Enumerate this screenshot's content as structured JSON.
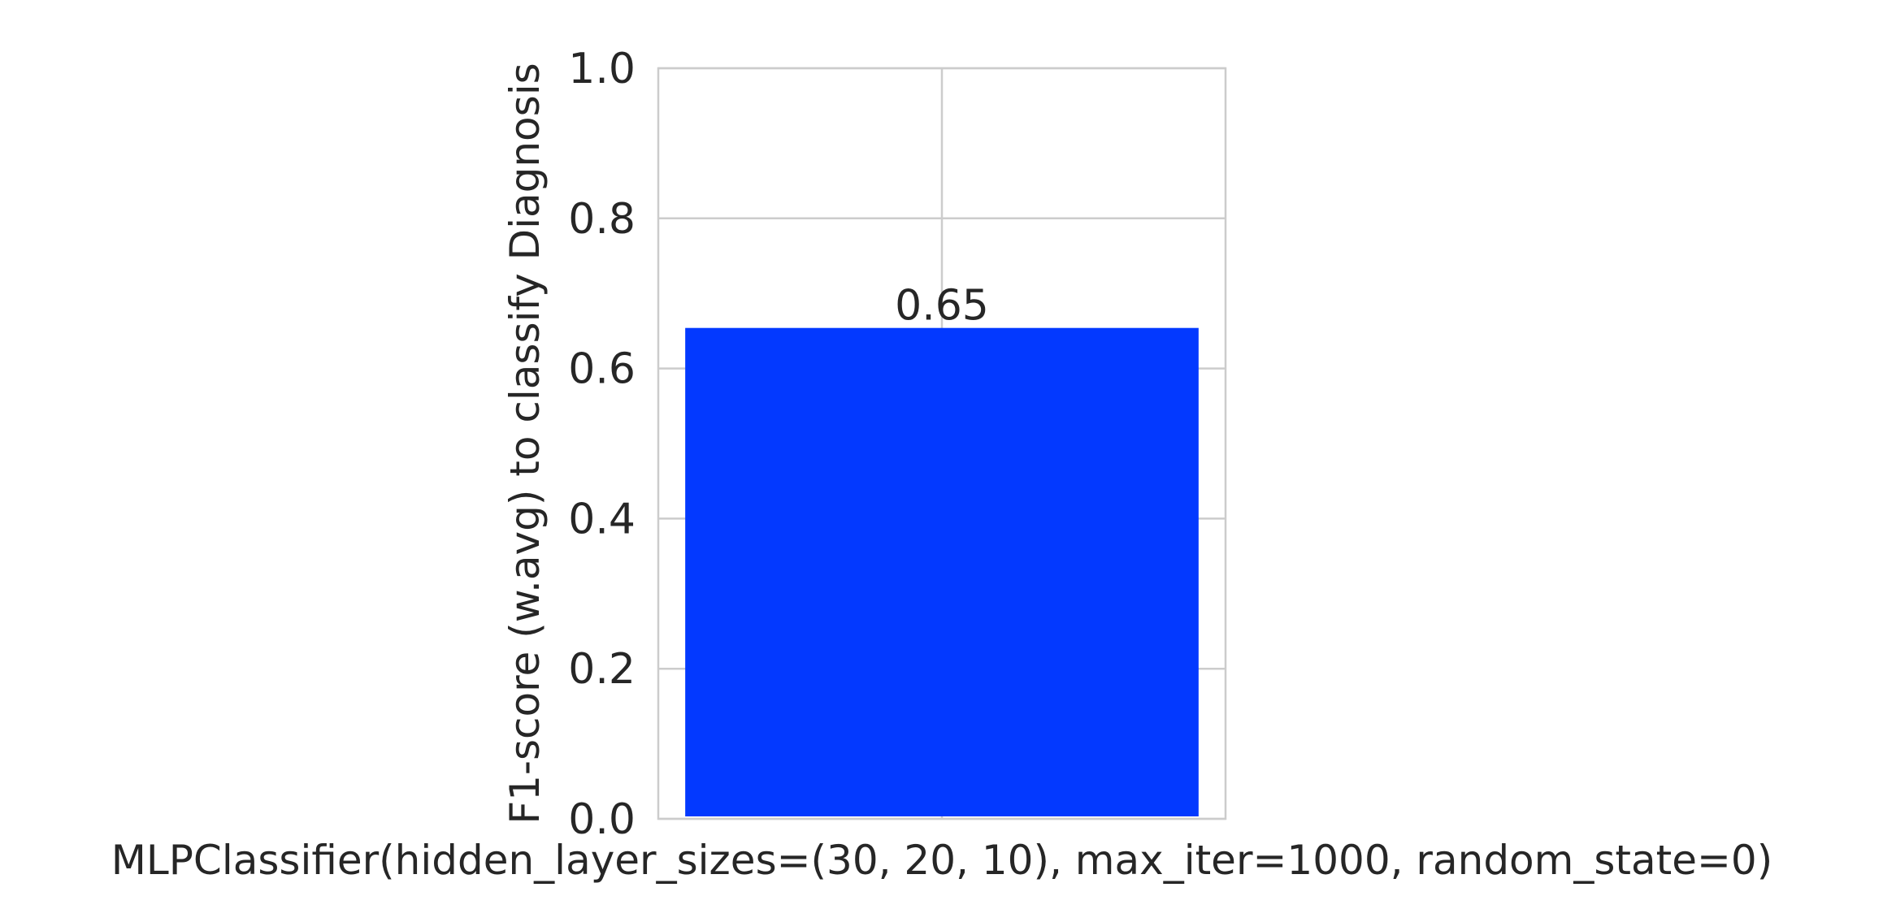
{
  "chart_data": {
    "type": "bar",
    "categories": [
      "MLPClassifier(hidden_layer_sizes=(30, 20, 10), max_iter=1000, random_state=0)"
    ],
    "values": [
      0.654
    ],
    "data_labels": [
      "0.65"
    ],
    "title": "",
    "xlabel": "",
    "ylabel": "F1-score (w.avg) to classify Diagnosis",
    "ylim": [
      0,
      1.0
    ],
    "yticks": [
      "0.0",
      "0.2",
      "0.4",
      "0.6",
      "0.8",
      "1.0"
    ],
    "grid": true,
    "colors": {
      "bar": "#0339ff",
      "grid": "#cccccc",
      "text": "#262626"
    }
  }
}
